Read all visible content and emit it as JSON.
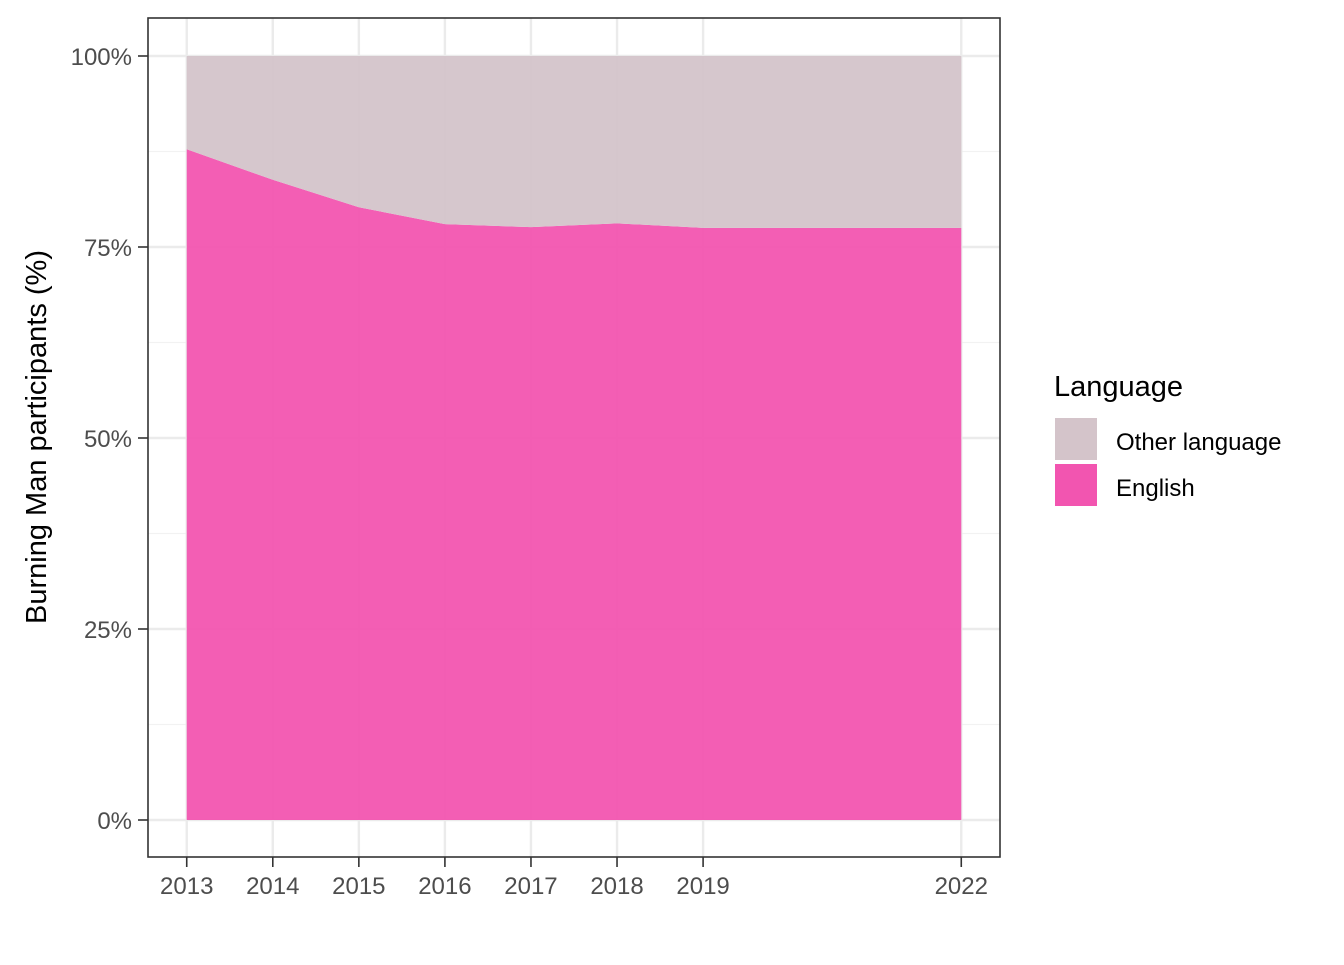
{
  "chart_data": {
    "type": "area",
    "stacked": true,
    "percent": true,
    "x": [
      2013,
      2014,
      2015,
      2016,
      2017,
      2018,
      2019,
      2022
    ],
    "x_tick_labels": [
      "2013",
      "2014",
      "2015",
      "2016",
      "2017",
      "2018",
      "2019",
      "2022"
    ],
    "series": [
      {
        "name": "English",
        "color": "#f255b0",
        "values": [
          87.8,
          83.8,
          80.2,
          78.0,
          77.6,
          78.1,
          77.5,
          77.5
        ]
      },
      {
        "name": "Other language",
        "color": "#d4c4ca",
        "values": [
          12.2,
          16.2,
          19.8,
          22.0,
          22.4,
          21.9,
          22.5,
          22.5
        ]
      }
    ],
    "title": "",
    "xlabel": "",
    "ylabel": "Burning Man participants (%)",
    "ylim": [
      0,
      100
    ],
    "y_ticks": [
      0,
      25,
      50,
      75,
      100
    ],
    "y_tick_labels": [
      "0%",
      "25%",
      "50%",
      "75%",
      "100%"
    ],
    "grid": true,
    "legend": {
      "title": "Language",
      "position": "right",
      "entries": [
        "Other language",
        "English"
      ]
    }
  }
}
